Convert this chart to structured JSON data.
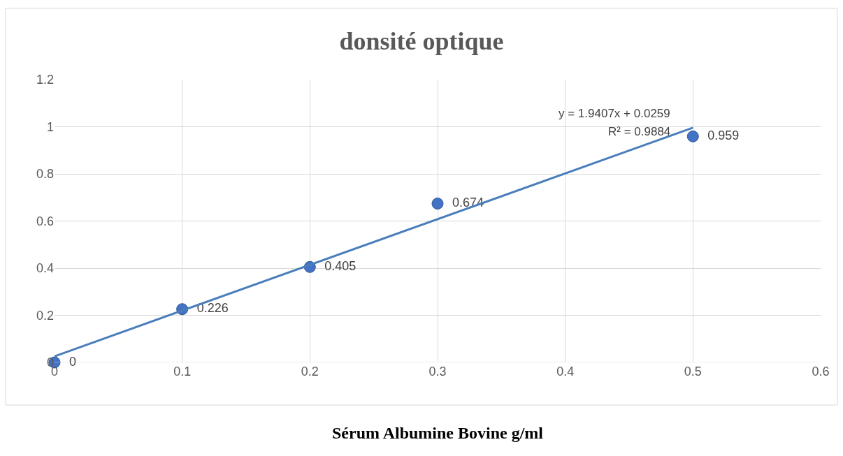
{
  "chart_data": {
    "type": "scatter",
    "title": "donsité optique",
    "xlabel": "Sérum Albumine Bovine g/ml",
    "x": [
      0,
      0.1,
      0.2,
      0.3,
      0.5
    ],
    "series": [
      {
        "color": "#4472c4",
        "values": [
          0,
          0.226,
          0.405,
          0.674,
          0.959
        ],
        "value_labels": [
          "0",
          "0.226",
          "0.405",
          "0.674",
          "0.959"
        ],
        "marker": "circle"
      },
      {
        "type": "line",
        "color": "#4a7ebb",
        "x": [
          0,
          0.5
        ],
        "values": [
          0.026,
          0.996
        ],
        "marker": "none"
      }
    ],
    "annotations": [
      "y = 1.9407x + 0.0259",
      "R² = 0.9884"
    ],
    "xlim": [
      0,
      0.6
    ],
    "xticks": [
      0,
      0.1,
      0.2,
      0.3,
      0.4,
      0.5,
      0.6
    ],
    "ylim": [
      0,
      1.2
    ],
    "yticks": [
      0,
      0.2,
      0.4,
      0.6,
      0.8,
      1,
      1.2
    ],
    "grid": true,
    "legend": false
  }
}
